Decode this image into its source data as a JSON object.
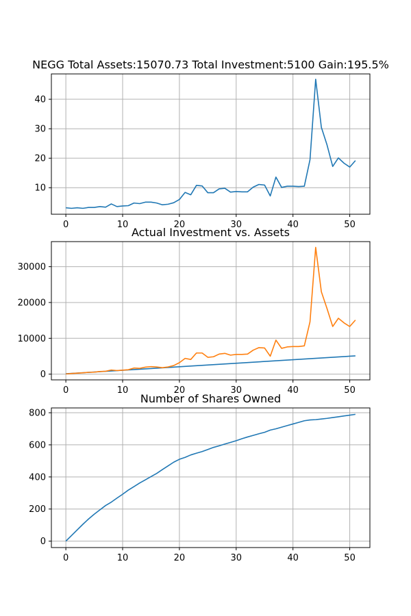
{
  "chart_data": [
    {
      "type": "line",
      "title": "NEGG Total Assets:15070.73  Total Investment:5100  Gain:195.5%",
      "xlim": [
        -2.55,
        53.55
      ],
      "ylim": [
        1.0,
        48.6
      ],
      "xticks": [
        0,
        10,
        20,
        30,
        40,
        50
      ],
      "yticks": [
        10,
        20,
        30,
        40
      ],
      "grid": true,
      "series": [
        {
          "color": "#1f77b4",
          "x": [
            0,
            1,
            2,
            3,
            4,
            5,
            6,
            7,
            8,
            9,
            10,
            11,
            12,
            13,
            14,
            15,
            16,
            17,
            18,
            19,
            20,
            21,
            22,
            23,
            24,
            25,
            26,
            27,
            28,
            29,
            30,
            31,
            32,
            33,
            34,
            35,
            36,
            37,
            38,
            39,
            40,
            41,
            42,
            43,
            44,
            45,
            46,
            47,
            48,
            49,
            50,
            51
          ],
          "y": [
            3.2,
            3.0,
            3.2,
            3.0,
            3.3,
            3.3,
            3.6,
            3.4,
            4.5,
            3.6,
            3.8,
            3.9,
            4.8,
            4.6,
            5.1,
            5.1,
            4.8,
            4.2,
            4.4,
            4.9,
            6.0,
            8.4,
            7.6,
            10.8,
            10.6,
            8.3,
            8.3,
            9.6,
            9.8,
            8.5,
            8.7,
            8.6,
            8.6,
            10.2,
            11.1,
            10.9,
            7.2,
            13.6,
            10.1,
            10.5,
            10.5,
            10.4,
            10.5,
            19.5,
            46.8,
            30.5,
            24.5,
            17.2,
            20.1,
            18.3,
            17.0,
            19.2
          ]
        }
      ]
    },
    {
      "type": "line",
      "title": "Actual Investment vs. Assets",
      "xlim": [
        -2.55,
        53.55
      ],
      "ylim": [
        -1600,
        37000
      ],
      "xticks": [
        0,
        10,
        20,
        30,
        40,
        50
      ],
      "yticks": [
        0,
        10000,
        20000,
        30000
      ],
      "grid": true,
      "series": [
        {
          "color": "#1f77b4",
          "x": [
            0,
            51
          ],
          "y": [
            100,
            5100
          ]
        },
        {
          "color": "#ff7f0e",
          "x": [
            0,
            1,
            2,
            3,
            4,
            5,
            6,
            7,
            8,
            9,
            10,
            11,
            12,
            13,
            14,
            15,
            16,
            17,
            18,
            19,
            20,
            21,
            22,
            23,
            24,
            25,
            26,
            27,
            28,
            29,
            30,
            31,
            32,
            33,
            34,
            35,
            36,
            37,
            38,
            39,
            40,
            41,
            42,
            43,
            44,
            45,
            46,
            47,
            48,
            49,
            50,
            51
          ],
          "y": [
            50,
            180,
            280,
            380,
            500,
            560,
            730,
            800,
            1150,
            1000,
            1120,
            1230,
            1700,
            1620,
            1950,
            2100,
            2000,
            1800,
            2000,
            2400,
            3200,
            4400,
            4100,
            5900,
            5900,
            4700,
            4850,
            5600,
            5800,
            5300,
            5500,
            5500,
            5600,
            6700,
            7400,
            7300,
            5000,
            9500,
            7200,
            7600,
            7700,
            7700,
            7900,
            14600,
            35400,
            23000,
            18300,
            13300,
            15600,
            14300,
            13300,
            15100
          ]
        }
      ]
    },
    {
      "type": "line",
      "title": "Number of Shares Owned",
      "xlim": [
        -2.55,
        53.55
      ],
      "ylim": [
        -40,
        830
      ],
      "xticks": [
        0,
        10,
        20,
        30,
        40,
        50
      ],
      "yticks": [
        0,
        200,
        400,
        600,
        800
      ],
      "grid": true,
      "series": [
        {
          "color": "#1f77b4",
          "x": [
            0,
            1,
            2,
            3,
            4,
            5,
            6,
            7,
            8,
            9,
            10,
            11,
            12,
            13,
            14,
            15,
            16,
            17,
            18,
            19,
            20,
            21,
            22,
            23,
            24,
            25,
            26,
            27,
            28,
            29,
            30,
            31,
            32,
            33,
            34,
            35,
            36,
            37,
            38,
            39,
            40,
            41,
            42,
            43,
            44,
            45,
            46,
            47,
            48,
            49,
            50,
            51
          ],
          "y": [
            0,
            35,
            70,
            105,
            138,
            168,
            195,
            222,
            243,
            268,
            292,
            318,
            340,
            362,
            382,
            402,
            422,
            446,
            469,
            492,
            510,
            522,
            537,
            548,
            558,
            571,
            584,
            594,
            605,
            615,
            626,
            638,
            649,
            659,
            669,
            678,
            692,
            700,
            710,
            720,
            730,
            740,
            750,
            755,
            757,
            761,
            765,
            770,
            775,
            780,
            785,
            790
          ]
        }
      ]
    }
  ]
}
